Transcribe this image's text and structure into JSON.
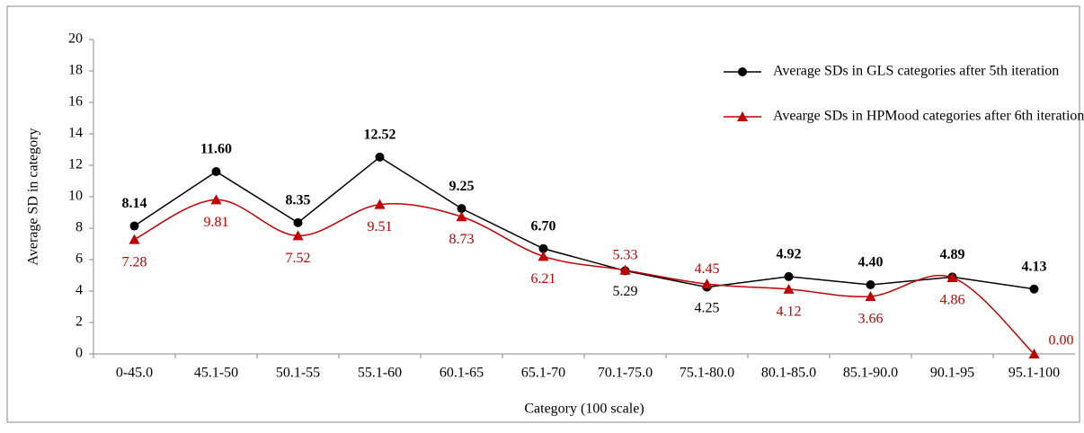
{
  "chart_data": {
    "type": "line",
    "x_label": "Category (100 scale)",
    "y_label": "Average SD in category",
    "categories": [
      "0-45.0",
      "45.1-50",
      "50.1-55",
      "55.1-60",
      "60.1-65",
      "65.1-70",
      "70.1-75.0",
      "75.1-80.0",
      "80.1-85.0",
      "85.1-90.0",
      "90.1-95",
      "95.1-100"
    ],
    "series": [
      {
        "name": "Average SDs in GLS categories after 5th iteration",
        "color": "#000000",
        "marker": "circle",
        "smooth": false,
        "values": [
          8.14,
          11.6,
          8.35,
          12.52,
          9.25,
          6.7,
          5.29,
          4.25,
          4.92,
          4.4,
          4.89,
          4.13
        ],
        "value_labels": [
          "8.14",
          "11.60",
          "8.35",
          "12.52",
          "9.25",
          "6.70",
          "5.29",
          "4.25",
          "4.92",
          "4.40",
          "4.89",
          "4.13"
        ]
      },
      {
        "name": "Avearge SDs in HPMood categories after 6th iteration",
        "color": "#c00000",
        "marker": "triangle",
        "smooth": true,
        "values": [
          7.28,
          9.81,
          7.52,
          9.51,
          8.73,
          6.21,
          5.33,
          4.45,
          4.12,
          3.66,
          4.86,
          0
        ],
        "value_labels": [
          "7.28",
          "9.81",
          "7.52",
          "9.51",
          "8.73",
          "6.21",
          "5.33",
          "4.45",
          "4.12",
          "3.66",
          "4.86",
          "0.00"
        ]
      }
    ],
    "ylim": [
      0,
      20
    ],
    "yticks": [
      0,
      2,
      4,
      6,
      8,
      10,
      12,
      14,
      16,
      18,
      20
    ],
    "grid": false,
    "legend": "top-right"
  }
}
